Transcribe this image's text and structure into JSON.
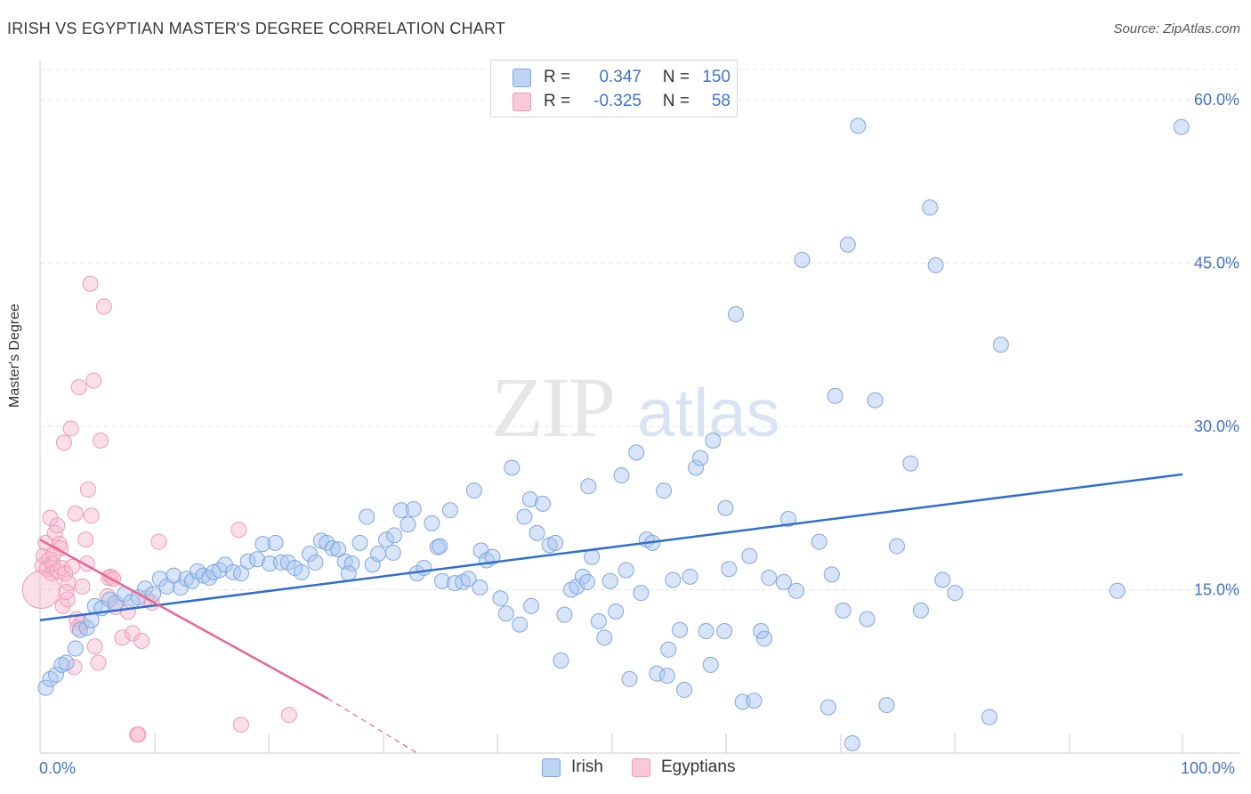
{
  "title": "IRISH VS EGYPTIAN MASTER'S DEGREE CORRELATION CHART",
  "source": "Source: ZipAtlas.com",
  "watermark": {
    "zip": "ZIP",
    "atlas": "atlas"
  },
  "legend": {
    "rows": [
      {
        "r_label": "R =",
        "r_value": "0.347",
        "n_label": "N =",
        "n_value": "150",
        "color": "#a9c6ef"
      },
      {
        "r_label": "R =",
        "r_value": "-0.325",
        "n_label": "N =",
        "n_value": "58",
        "color": "#f6b8cb"
      }
    ]
  },
  "bottom_legend": [
    {
      "label": "Irish",
      "color": "#a9c6ef"
    },
    {
      "label": "Egyptians",
      "color": "#f6b8cb"
    }
  ],
  "colors": {
    "irish_fill": "rgba(169,198,239,0.45)",
    "irish_stroke": "#7ea6e0",
    "irish_line": "#2f6fd0",
    "egypt_fill": "rgba(246,184,203,0.45)",
    "egypt_stroke": "#ee9ab4",
    "egypt_line": "#e8678f",
    "grid": "#e3e3e3",
    "tick_label": "#3f73c8"
  },
  "chart_data": {
    "type": "scatter",
    "title": "IRISH VS EGYPTIAN MASTER'S DEGREE CORRELATION CHART",
    "xlabel": "",
    "ylabel": "Master's Degree",
    "x_tick_labels": [
      "0.0%",
      "100.0%"
    ],
    "y_tick_labels": [
      "15.0%",
      "30.0%",
      "45.0%",
      "60.0%"
    ],
    "xlim": [
      0,
      100
    ],
    "ylim": [
      0,
      60
    ],
    "y_ticks": [
      15,
      30,
      45,
      60
    ],
    "grid": true,
    "legend_position": "top-center",
    "series": [
      {
        "name": "Irish",
        "regression": {
          "x": [
            0,
            100
          ],
          "y": [
            12.2,
            25.6
          ]
        },
        "points": [
          [
            0.5,
            6
          ],
          [
            0.9,
            6.8
          ],
          [
            1.4,
            7.2
          ],
          [
            1.9,
            8.1
          ],
          [
            2.3,
            8.3
          ],
          [
            3.1,
            9.6
          ],
          [
            3.5,
            11.3
          ],
          [
            4.1,
            11.5
          ],
          [
            4.5,
            12.2
          ],
          [
            4.8,
            13.5
          ],
          [
            5.4,
            13.3
          ],
          [
            6.1,
            14.1
          ],
          [
            6.6,
            13.8
          ],
          [
            7.4,
            14.6
          ],
          [
            8.0,
            13.9
          ],
          [
            8.6,
            14.3
          ],
          [
            9.2,
            15.1
          ],
          [
            9.9,
            14.6
          ],
          [
            10.5,
            16.0
          ],
          [
            11.1,
            15.3
          ],
          [
            11.7,
            16.3
          ],
          [
            12.3,
            15.2
          ],
          [
            12.8,
            16.0
          ],
          [
            13.3,
            15.8
          ],
          [
            13.8,
            16.7
          ],
          [
            14.3,
            16.3
          ],
          [
            14.8,
            16.1
          ],
          [
            15.2,
            16.6
          ],
          [
            15.7,
            16.8
          ],
          [
            16.2,
            17.3
          ],
          [
            16.9,
            16.6
          ],
          [
            17.6,
            16.5
          ],
          [
            18.2,
            17.6
          ],
          [
            19.0,
            17.8
          ],
          [
            19.5,
            19.2
          ],
          [
            20.1,
            17.4
          ],
          [
            20.6,
            19.3
          ],
          [
            21.1,
            17.5
          ],
          [
            21.7,
            17.5
          ],
          [
            22.3,
            17.0
          ],
          [
            22.9,
            16.6
          ],
          [
            23.6,
            18.3
          ],
          [
            24.1,
            17.5
          ],
          [
            24.6,
            19.5
          ],
          [
            25.1,
            19.3
          ],
          [
            25.6,
            18.8
          ],
          [
            26.1,
            18.7
          ],
          [
            26.7,
            17.6
          ],
          [
            27.3,
            17.4
          ],
          [
            28.0,
            19.3
          ],
          [
            28.6,
            21.7
          ],
          [
            29.1,
            17.3
          ],
          [
            29.6,
            18.3
          ],
          [
            30.3,
            19.6
          ],
          [
            30.9,
            18.4
          ],
          [
            31.6,
            22.3
          ],
          [
            32.2,
            21.0
          ],
          [
            32.7,
            22.4
          ],
          [
            33.0,
            16.5
          ],
          [
            33.6,
            17.0
          ],
          [
            34.3,
            21.1
          ],
          [
            34.8,
            18.9
          ],
          [
            35.2,
            15.8
          ],
          [
            35.9,
            22.3
          ],
          [
            36.3,
            15.6
          ],
          [
            37.0,
            15.7
          ],
          [
            37.5,
            16.0
          ],
          [
            38.0,
            24.1
          ],
          [
            38.6,
            18.6
          ],
          [
            39.1,
            17.7
          ],
          [
            39.6,
            18.0
          ],
          [
            40.3,
            14.2
          ],
          [
            40.8,
            12.8
          ],
          [
            41.3,
            26.2
          ],
          [
            42.0,
            11.8
          ],
          [
            42.4,
            21.7
          ],
          [
            42.9,
            23.3
          ],
          [
            43.5,
            20.2
          ],
          [
            44.0,
            22.9
          ],
          [
            44.6,
            19.1
          ],
          [
            45.1,
            19.3
          ],
          [
            45.6,
            8.5
          ],
          [
            45.9,
            12.7
          ],
          [
            46.5,
            15.0
          ],
          [
            47.0,
            15.3
          ],
          [
            47.5,
            16.2
          ],
          [
            47.9,
            15.7
          ],
          [
            48.3,
            18.0
          ],
          [
            48.9,
            12.1
          ],
          [
            49.4,
            10.6
          ],
          [
            49.9,
            15.8
          ],
          [
            50.4,
            13.0
          ],
          [
            50.9,
            25.5
          ],
          [
            51.3,
            16.8
          ],
          [
            51.6,
            6.8
          ],
          [
            52.2,
            27.6
          ],
          [
            52.6,
            14.7
          ],
          [
            53.1,
            19.6
          ],
          [
            53.6,
            19.3
          ],
          [
            54.0,
            7.3
          ],
          [
            54.6,
            24.1
          ],
          [
            54.9,
            7.1
          ],
          [
            55.4,
            15.9
          ],
          [
            56.0,
            11.3
          ],
          [
            56.4,
            5.8
          ],
          [
            56.9,
            16.2
          ],
          [
            57.4,
            26.2
          ],
          [
            57.8,
            27.1
          ],
          [
            58.3,
            11.2
          ],
          [
            58.7,
            8.1
          ],
          [
            58.9,
            28.7
          ],
          [
            59.9,
            11.2
          ],
          [
            60.3,
            16.9
          ],
          [
            60.9,
            40.3
          ],
          [
            61.5,
            4.7
          ],
          [
            62.1,
            18.1
          ],
          [
            62.5,
            4.8
          ],
          [
            63.1,
            11.2
          ],
          [
            63.4,
            10.5
          ],
          [
            63.8,
            16.1
          ],
          [
            65.1,
            15.7
          ],
          [
            66.2,
            14.9
          ],
          [
            66.7,
            45.3
          ],
          [
            68.2,
            19.4
          ],
          [
            69.0,
            4.2
          ],
          [
            69.3,
            16.4
          ],
          [
            69.6,
            32.8
          ],
          [
            70.3,
            13.1
          ],
          [
            70.7,
            46.7
          ],
          [
            71.1,
            0.9
          ],
          [
            71.6,
            57.6
          ],
          [
            72.4,
            12.3
          ],
          [
            73.1,
            32.4
          ],
          [
            74.1,
            4.4
          ],
          [
            76.2,
            26.6
          ],
          [
            77.1,
            13.1
          ],
          [
            77.9,
            50.1
          ],
          [
            78.4,
            44.8
          ],
          [
            79.0,
            15.9
          ],
          [
            80.1,
            14.7
          ],
          [
            83.1,
            3.3
          ],
          [
            84.1,
            37.5
          ],
          [
            94.3,
            14.9
          ],
          [
            99.9,
            57.5
          ],
          [
            38.5,
            15.2
          ],
          [
            43.0,
            13.5
          ],
          [
            35.0,
            19.0
          ],
          [
            27.0,
            16.5
          ],
          [
            31.0,
            20.0
          ],
          [
            55.0,
            9.5
          ],
          [
            65.5,
            21.5
          ],
          [
            48.0,
            24.5
          ],
          [
            60.0,
            22.5
          ],
          [
            75.0,
            19.0
          ]
        ]
      },
      {
        "name": "Egyptians",
        "regression": {
          "x": [
            0,
            25.2
          ],
          "y": [
            19.6,
            5.0
          ]
        },
        "regression_dashed": {
          "x": [
            25.2,
            33
          ],
          "y": [
            5.0,
            0.0
          ]
        },
        "points": [
          [
            0.2,
            17.2
          ],
          [
            0.3,
            18.1
          ],
          [
            0.5,
            19.3
          ],
          [
            0.6,
            16.9
          ],
          [
            0.8,
            17.8
          ],
          [
            0.9,
            21.6
          ],
          [
            1.0,
            16.5
          ],
          [
            1.1,
            17.4
          ],
          [
            1.3,
            20.2
          ],
          [
            1.5,
            20.9
          ],
          [
            1.5,
            16.7
          ],
          [
            1.7,
            19.2
          ],
          [
            1.8,
            18.8
          ],
          [
            1.9,
            17.0
          ],
          [
            2.0,
            13.5
          ],
          [
            2.1,
            28.5
          ],
          [
            2.2,
            16.5
          ],
          [
            2.4,
            14.1
          ],
          [
            2.5,
            15.6
          ],
          [
            2.7,
            29.8
          ],
          [
            2.8,
            17.1
          ],
          [
            3.0,
            7.9
          ],
          [
            3.1,
            22.0
          ],
          [
            3.2,
            12.3
          ],
          [
            3.4,
            33.6
          ],
          [
            3.6,
            11.9
          ],
          [
            3.7,
            15.3
          ],
          [
            4.0,
            19.6
          ],
          [
            4.2,
            24.2
          ],
          [
            4.4,
            43.1
          ],
          [
            4.5,
            21.8
          ],
          [
            4.7,
            34.2
          ],
          [
            4.8,
            9.8
          ],
          [
            5.1,
            8.3
          ],
          [
            5.3,
            28.7
          ],
          [
            5.6,
            41.0
          ],
          [
            5.9,
            14.4
          ],
          [
            6.0,
            16.1
          ],
          [
            6.2,
            16.2
          ],
          [
            6.6,
            13.4
          ],
          [
            7.2,
            10.6
          ],
          [
            7.7,
            13.0
          ],
          [
            8.1,
            11.0
          ],
          [
            8.5,
            1.7
          ],
          [
            8.6,
            1.7
          ],
          [
            8.9,
            10.3
          ],
          [
            9.8,
            13.8
          ],
          [
            10.4,
            19.4
          ],
          [
            17.4,
            20.5
          ],
          [
            17.6,
            2.6
          ],
          [
            21.8,
            3.5
          ],
          [
            0.1,
            15.0
          ],
          [
            1.2,
            18.3
          ],
          [
            2.3,
            14.8
          ],
          [
            3.3,
            11.5
          ],
          [
            4.1,
            17.4
          ],
          [
            6.4,
            16.0
          ],
          [
            9.3,
            14.2
          ]
        ]
      }
    ]
  }
}
